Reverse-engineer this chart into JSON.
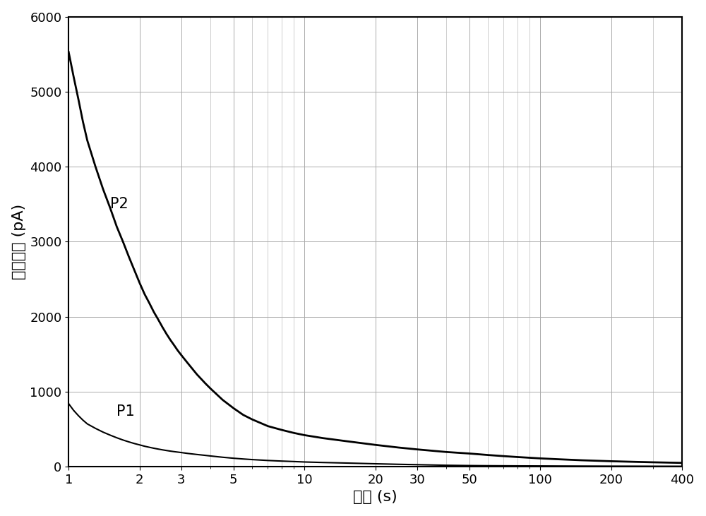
{
  "title": "",
  "xlabel": "时间 (s)",
  "ylabel": "极化电流 (pA)",
  "xlim": [
    1,
    400
  ],
  "ylim": [
    0,
    6000
  ],
  "yticks": [
    0,
    1000,
    2000,
    3000,
    4000,
    5000,
    6000
  ],
  "xticks": [
    1,
    2,
    3,
    5,
    10,
    20,
    30,
    50,
    100,
    200,
    400
  ],
  "xtick_labels": [
    "1",
    "2",
    "3",
    "5",
    "10",
    "20",
    "30",
    "50",
    "100",
    "200",
    "400"
  ],
  "line_color": "#000000",
  "background_color": "#ffffff",
  "grid_color": "#aaaaaa",
  "label_P1": "P1",
  "label_P2": "P2",
  "P2_x": [
    1,
    1.05,
    1.1,
    1.15,
    1.2,
    1.3,
    1.4,
    1.5,
    1.6,
    1.7,
    1.8,
    1.9,
    2.0,
    2.1,
    2.2,
    2.3,
    2.4,
    2.5,
    2.6,
    2.7,
    2.8,
    2.9,
    3.0,
    3.2,
    3.5,
    3.8,
    4.0,
    4.5,
    5.0,
    5.5,
    6.0,
    7.0,
    8.0,
    9.0,
    10.0,
    12.0,
    15.0,
    20.0,
    25.0,
    30.0,
    40.0,
    50.0,
    60.0,
    70.0,
    80.0,
    100.0,
    120.0,
    150.0,
    200.0,
    250.0,
    300.0,
    400.0
  ],
  "P2_y": [
    5530,
    5200,
    4900,
    4600,
    4350,
    4000,
    3700,
    3450,
    3200,
    3000,
    2800,
    2620,
    2450,
    2300,
    2180,
    2060,
    1960,
    1860,
    1770,
    1690,
    1620,
    1550,
    1490,
    1380,
    1230,
    1110,
    1040,
    890,
    780,
    690,
    630,
    540,
    490,
    450,
    420,
    380,
    340,
    290,
    255,
    230,
    195,
    175,
    155,
    140,
    128,
    110,
    98,
    85,
    72,
    64,
    58,
    50
  ],
  "P1_x": [
    1,
    1.05,
    1.1,
    1.15,
    1.2,
    1.3,
    1.4,
    1.5,
    1.6,
    1.7,
    1.8,
    1.9,
    2.0,
    2.1,
    2.2,
    2.3,
    2.4,
    2.5,
    2.6,
    2.7,
    2.8,
    2.9,
    3.0,
    3.2,
    3.5,
    3.8,
    4.0,
    4.5,
    5.0,
    5.5,
    6.0,
    7.0,
    8.0,
    9.0,
    10.0,
    12.0,
    15.0,
    20.0,
    25.0,
    30.0,
    40.0,
    50.0,
    60.0,
    70.0,
    80.0,
    100.0,
    120.0,
    150.0,
    200.0,
    250.0,
    300.0,
    400.0
  ],
  "P1_y": [
    840,
    750,
    680,
    620,
    570,
    510,
    460,
    420,
    385,
    355,
    330,
    308,
    290,
    272,
    258,
    245,
    234,
    224,
    215,
    207,
    200,
    194,
    188,
    176,
    162,
    150,
    142,
    125,
    112,
    102,
    94,
    82,
    74,
    68,
    62,
    55,
    48,
    38,
    31,
    26,
    18,
    14,
    12,
    11,
    10,
    9,
    8,
    7,
    6,
    5.5,
    5,
    4.5
  ]
}
